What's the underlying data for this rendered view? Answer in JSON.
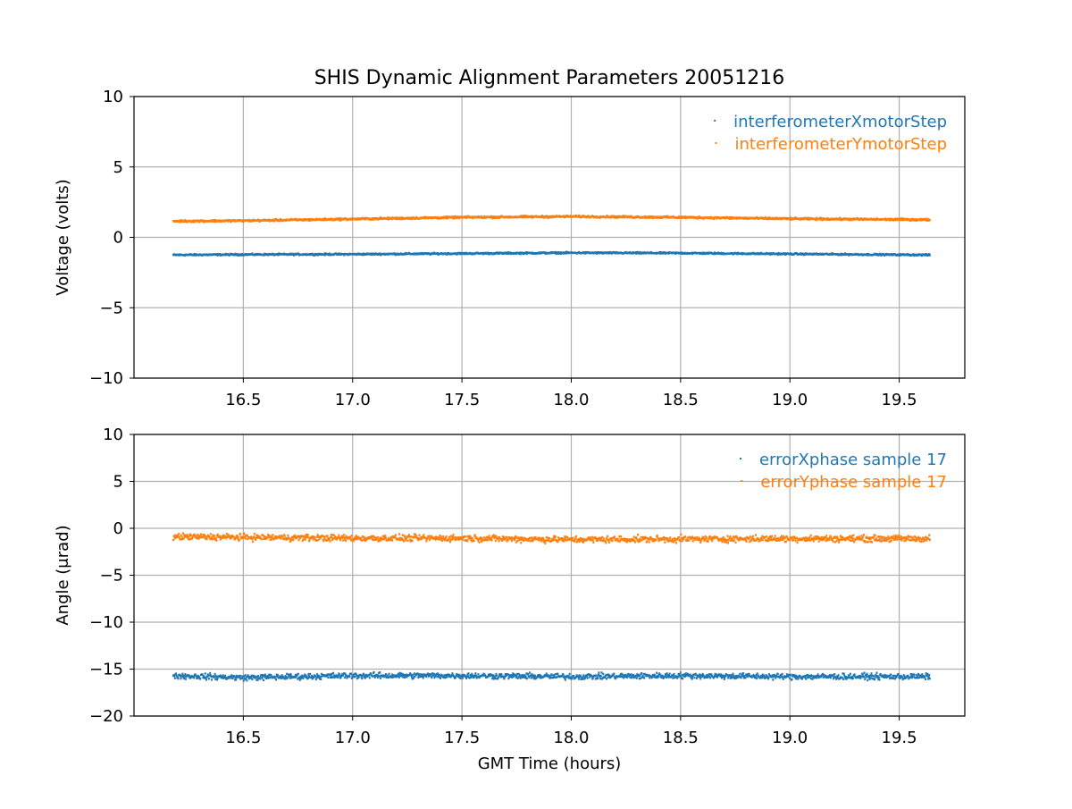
{
  "figure_title": "SHIS Dynamic Alignment Parameters 20051216",
  "colors": {
    "series1": "#1f77b4",
    "series2": "#ff7f0e",
    "grid": "#b0b0b0",
    "axes": "#000000"
  },
  "chart_data": [
    {
      "type": "scatter",
      "title": "SHIS Dynamic Alignment Parameters 20051216",
      "xlabel": "",
      "ylabel": "Voltage (volts)",
      "xlim": [
        16.0,
        19.8
      ],
      "ylim": [
        -10,
        10
      ],
      "xticks": [
        16.5,
        17.0,
        17.5,
        18.0,
        18.5,
        19.0,
        19.5
      ],
      "xtick_labels": [
        "16.5",
        "17.0",
        "17.5",
        "18.0",
        "18.5",
        "19.0",
        "19.5"
      ],
      "yticks": [
        10,
        5,
        0,
        -5,
        -10
      ],
      "ytick_labels": [
        "10",
        "5",
        "0",
        "−5",
        "−10"
      ],
      "grid": true,
      "legend_position": "top-right",
      "series": [
        {
          "name": "interferometerXmotorStep",
          "color": "#1f77b4",
          "x": [
            16.18,
            16.5,
            17.0,
            17.5,
            18.0,
            18.5,
            19.0,
            19.64
          ],
          "y": [
            -1.25,
            -1.22,
            -1.2,
            -1.15,
            -1.1,
            -1.12,
            -1.18,
            -1.25
          ],
          "spread": 0.08
        },
        {
          "name": "interferometerYmotorStep",
          "color": "#ff7f0e",
          "x": [
            16.18,
            16.5,
            17.0,
            17.5,
            18.0,
            18.5,
            19.0,
            19.64
          ],
          "y": [
            1.15,
            1.18,
            1.3,
            1.42,
            1.48,
            1.42,
            1.32,
            1.25
          ],
          "spread": 0.1
        }
      ]
    },
    {
      "type": "scatter",
      "title": "",
      "xlabel": "GMT Time (hours)",
      "ylabel": "Angle (μrad)",
      "xlim": [
        16.0,
        19.8
      ],
      "ylim": [
        -20,
        10
      ],
      "xticks": [
        16.5,
        17.0,
        17.5,
        18.0,
        18.5,
        19.0,
        19.5
      ],
      "xtick_labels": [
        "16.5",
        "17.0",
        "17.5",
        "18.0",
        "18.5",
        "19.0",
        "19.5"
      ],
      "yticks": [
        10,
        5,
        0,
        -5,
        -10,
        -15,
        -20
      ],
      "ytick_labels": [
        "10",
        "5",
        "0",
        "−5",
        "−10",
        "−15",
        "−20"
      ],
      "grid": true,
      "legend_position": "top-right",
      "series": [
        {
          "name": "errorXphase sample 17",
          "color": "#1f77b4",
          "x": [
            16.18,
            16.5,
            17.0,
            17.5,
            18.0,
            18.5,
            19.0,
            19.64
          ],
          "y": [
            -15.7,
            -15.9,
            -15.7,
            -15.7,
            -15.8,
            -15.7,
            -15.8,
            -15.8
          ],
          "spread": 0.45
        },
        {
          "name": "errorYphase sample 17",
          "color": "#ff7f0e",
          "x": [
            16.18,
            16.5,
            17.0,
            17.5,
            18.0,
            18.5,
            19.0,
            19.64
          ],
          "y": [
            -0.9,
            -0.95,
            -1.05,
            -1.05,
            -1.2,
            -1.15,
            -1.1,
            -1.1
          ],
          "spread": 0.5
        }
      ]
    }
  ]
}
